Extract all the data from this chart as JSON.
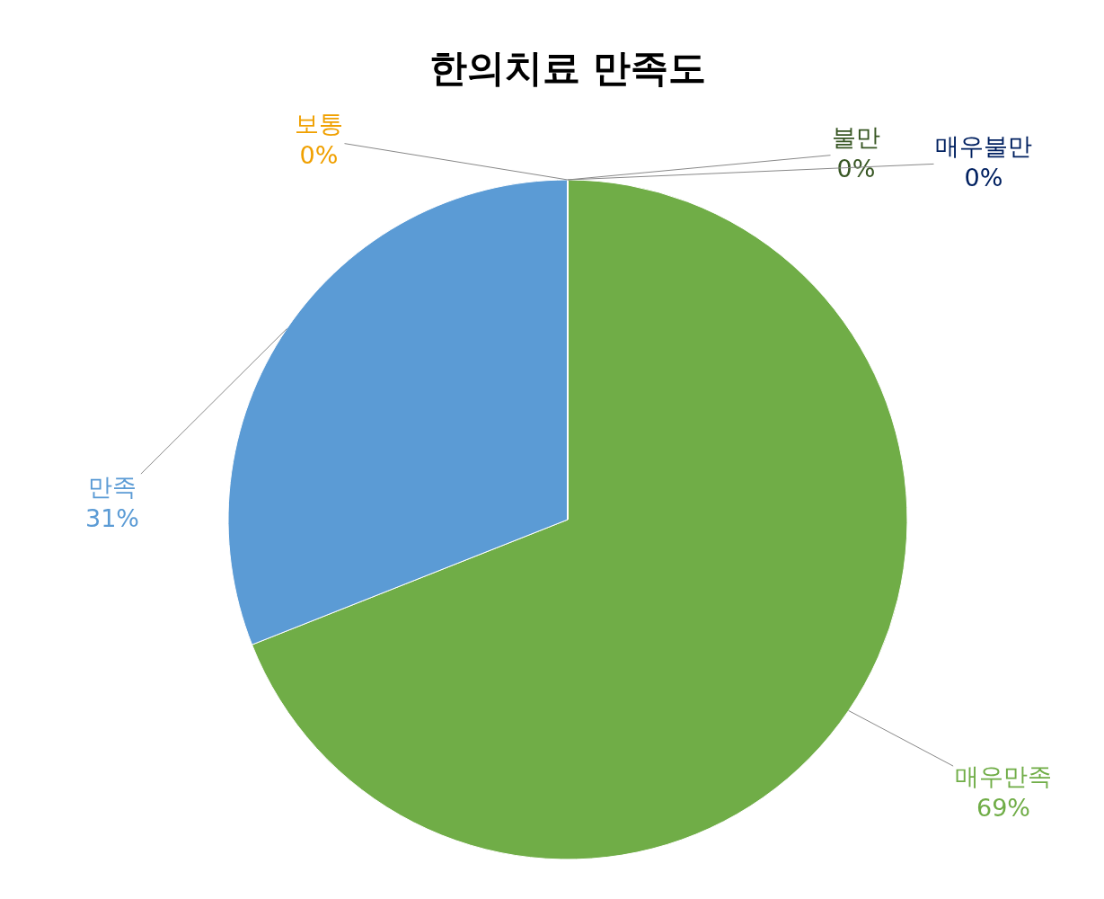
{
  "chart_data": {
    "type": "pie",
    "title": "한의치료 만족도",
    "categories": [
      "매우만족",
      "만족",
      "보통",
      "불만",
      "매우불만"
    ],
    "values": [
      69,
      31,
      0,
      0,
      0
    ],
    "value_labels": [
      "69%",
      "31%",
      "0%",
      "0%",
      "0%"
    ],
    "colors": [
      "#70ad47",
      "#5b9bd5",
      "#f0a000",
      "#375623",
      "#002060"
    ],
    "legend": false
  }
}
